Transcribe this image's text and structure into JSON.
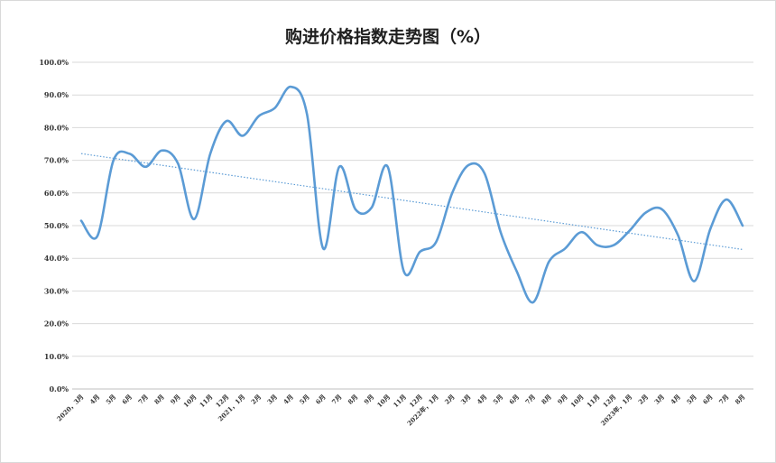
{
  "chart_data": {
    "type": "line",
    "title": "购进价格指数走势图（%）",
    "xlabel": "",
    "ylabel": "",
    "ylim": [
      0,
      100
    ],
    "yticks": [
      "0.0%",
      "10.0%",
      "20.0%",
      "30.0%",
      "40.0%",
      "50.0%",
      "60.0%",
      "70.0%",
      "80.0%",
      "90.0%",
      "100.0%"
    ],
    "categories": [
      "2020，3月",
      "4月",
      "5月",
      "6月",
      "7月",
      "8月",
      "9月",
      "10月",
      "11月",
      "12月",
      "2021，1月",
      "2月",
      "3月",
      "4月",
      "5月",
      "6月",
      "7月",
      "8月",
      "9月",
      "10月",
      "11月",
      "12月",
      "2022年，1月",
      "2月",
      "3月",
      "4月",
      "5月",
      "6月",
      "7月",
      "8月",
      "9月",
      "10月",
      "11月",
      "12月",
      "2023年，1月",
      "2月",
      "3月",
      "4月",
      "5月",
      "6月",
      "7月",
      "8月"
    ],
    "series": [
      {
        "values": [
          51.5,
          46.8,
          70.0,
          72.0,
          68.0,
          73.0,
          69.0,
          52.0,
          72.0,
          82.0,
          77.5,
          83.5,
          86.0,
          92.5,
          84.0,
          43.0,
          68.0,
          55.0,
          55.5,
          68.0,
          36.0,
          42.0,
          45.0,
          60.0,
          68.5,
          66.0,
          48.0,
          36.0,
          26.5,
          39.0,
          43.0,
          48.0,
          44.0,
          44.0,
          48.5,
          54.0,
          55.0,
          47.0,
          33.0,
          49.0,
          58.0,
          50.0
        ],
        "color": "#5b9bd5"
      }
    ],
    "trendline": {
      "type": "linear",
      "style": "dotted",
      "color": "#5b9bd5"
    },
    "grid": true,
    "legend": "none"
  }
}
